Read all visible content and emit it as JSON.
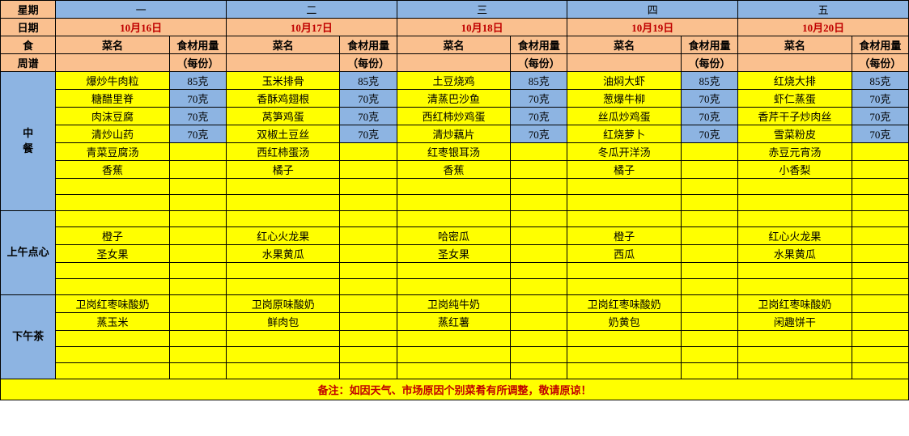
{
  "header": {
    "weekLabel": "星期",
    "days": [
      "一",
      "二",
      "三",
      "四",
      "五"
    ],
    "dateLabel": "日期",
    "dates": [
      "10月16日",
      "10月17日",
      "10月18日",
      "10月19日",
      "10月20日"
    ],
    "foodLabel": "食",
    "recipeLabel": "周谱",
    "dishLabel": "菜名",
    "amountLabel": "食材用量",
    "perServing": "（每份）"
  },
  "sections": {
    "lunch": "中餐",
    "morningSnack": "上午点心",
    "afternoonTea": "下午茶"
  },
  "lunch": [
    {
      "d1": {
        "n": "爆炒牛肉粒",
        "a": "85克"
      },
      "d2": {
        "n": "玉米排骨",
        "a": "85克"
      },
      "d3": {
        "n": "土豆烧鸡",
        "a": "85克"
      },
      "d4": {
        "n": "油焖大虾",
        "a": "85克"
      },
      "d5": {
        "n": "红烧大排",
        "a": "85克"
      }
    },
    {
      "d1": {
        "n": "糖醋里脊",
        "a": "70克"
      },
      "d2": {
        "n": "香酥鸡翅根",
        "a": "70克"
      },
      "d3": {
        "n": "清蒸巴沙鱼",
        "a": "70克"
      },
      "d4": {
        "n": "葱爆牛柳",
        "a": "70克"
      },
      "d5": {
        "n": "虾仁蒸蛋",
        "a": "70克"
      }
    },
    {
      "d1": {
        "n": "肉沫豆腐",
        "a": "70克"
      },
      "d2": {
        "n": "莴笋鸡蛋",
        "a": "70克"
      },
      "d3": {
        "n": "西红柿炒鸡蛋",
        "a": "70克"
      },
      "d4": {
        "n": "丝瓜炒鸡蛋",
        "a": "70克"
      },
      "d5": {
        "n": "香芹干子炒肉丝",
        "a": "70克"
      }
    },
    {
      "d1": {
        "n": "清炒山药",
        "a": "70克"
      },
      "d2": {
        "n": "双椒土豆丝",
        "a": "70克"
      },
      "d3": {
        "n": "清炒藕片",
        "a": "70克"
      },
      "d4": {
        "n": "红烧萝卜",
        "a": "70克"
      },
      "d5": {
        "n": "雪菜粉皮",
        "a": "70克"
      }
    },
    {
      "d1": {
        "n": "青菜豆腐汤",
        "a": ""
      },
      "d2": {
        "n": "西红柿蛋汤",
        "a": ""
      },
      "d3": {
        "n": "红枣银耳汤",
        "a": ""
      },
      "d4": {
        "n": "冬瓜开洋汤",
        "a": ""
      },
      "d5": {
        "n": "赤豆元宵汤",
        "a": ""
      }
    },
    {
      "d1": {
        "n": "香蕉",
        "a": ""
      },
      "d2": {
        "n": "橘子",
        "a": ""
      },
      "d3": {
        "n": "香蕉",
        "a": ""
      },
      "d4": {
        "n": "橘子",
        "a": ""
      },
      "d5": {
        "n": "小香梨",
        "a": ""
      }
    },
    {
      "d1": {
        "n": "",
        "a": ""
      },
      "d2": {
        "n": "",
        "a": ""
      },
      "d3": {
        "n": "",
        "a": ""
      },
      "d4": {
        "n": "",
        "a": ""
      },
      "d5": {
        "n": "",
        "a": ""
      }
    },
    {
      "d1": {
        "n": "",
        "a": ""
      },
      "d2": {
        "n": "",
        "a": ""
      },
      "d3": {
        "n": "",
        "a": ""
      },
      "d4": {
        "n": "",
        "a": ""
      },
      "d5": {
        "n": "",
        "a": ""
      }
    }
  ],
  "morning": [
    {
      "d1": {
        "n": "",
        "a": ""
      },
      "d2": {
        "n": "",
        "a": ""
      },
      "d3": {
        "n": "",
        "a": ""
      },
      "d4": {
        "n": "",
        "a": ""
      },
      "d5": {
        "n": "",
        "a": ""
      }
    },
    {
      "d1": {
        "n": "橙子",
        "a": ""
      },
      "d2": {
        "n": "红心火龙果",
        "a": ""
      },
      "d3": {
        "n": "哈密瓜",
        "a": ""
      },
      "d4": {
        "n": "橙子",
        "a": ""
      },
      "d5": {
        "n": "红心火龙果",
        "a": ""
      }
    },
    {
      "d1": {
        "n": "圣女果",
        "a": ""
      },
      "d2": {
        "n": "水果黄瓜",
        "a": ""
      },
      "d3": {
        "n": "圣女果",
        "a": ""
      },
      "d4": {
        "n": "西瓜",
        "a": ""
      },
      "d5": {
        "n": "水果黄瓜",
        "a": ""
      }
    },
    {
      "d1": {
        "n": "",
        "a": ""
      },
      "d2": {
        "n": "",
        "a": ""
      },
      "d3": {
        "n": "",
        "a": ""
      },
      "d4": {
        "n": "",
        "a": ""
      },
      "d5": {
        "n": "",
        "a": ""
      }
    },
    {
      "d1": {
        "n": "",
        "a": ""
      },
      "d2": {
        "n": "",
        "a": ""
      },
      "d3": {
        "n": "",
        "a": ""
      },
      "d4": {
        "n": "",
        "a": ""
      },
      "d5": {
        "n": "",
        "a": ""
      }
    }
  ],
  "afternoon": [
    {
      "d1": {
        "n": "卫岗红枣味酸奶",
        "a": ""
      },
      "d2": {
        "n": "卫岗原味酸奶",
        "a": ""
      },
      "d3": {
        "n": "卫岗纯牛奶",
        "a": ""
      },
      "d4": {
        "n": "卫岗红枣味酸奶",
        "a": ""
      },
      "d5": {
        "n": "卫岗红枣味酸奶",
        "a": ""
      }
    },
    {
      "d1": {
        "n": "蒸玉米",
        "a": ""
      },
      "d2": {
        "n": "鲜肉包",
        "a": ""
      },
      "d3": {
        "n": "蒸红薯",
        "a": ""
      },
      "d4": {
        "n": "奶黄包",
        "a": ""
      },
      "d5": {
        "n": "闲趣饼干",
        "a": ""
      }
    },
    {
      "d1": {
        "n": "",
        "a": ""
      },
      "d2": {
        "n": "",
        "a": ""
      },
      "d3": {
        "n": "",
        "a": ""
      },
      "d4": {
        "n": "",
        "a": ""
      },
      "d5": {
        "n": "",
        "a": ""
      }
    },
    {
      "d1": {
        "n": "",
        "a": ""
      },
      "d2": {
        "n": "",
        "a": ""
      },
      "d3": {
        "n": "",
        "a": ""
      },
      "d4": {
        "n": "",
        "a": ""
      },
      "d5": {
        "n": "",
        "a": ""
      }
    },
    {
      "d1": {
        "n": "",
        "a": ""
      },
      "d2": {
        "n": "",
        "a": ""
      },
      "d3": {
        "n": "",
        "a": ""
      },
      "d4": {
        "n": "",
        "a": ""
      },
      "d5": {
        "n": "",
        "a": ""
      }
    }
  ],
  "note": "备注：如因天气、市场原因个别菜肴有所调整，敬请原谅！",
  "colors": {
    "orange": "#fac08f",
    "blue": "#8db4e2",
    "yellow": "#ffff00",
    "redText": "#c00000",
    "border": "#000000"
  },
  "layout": {
    "totalWidth": 1123,
    "totalHeight": 539,
    "sideColWidth": 68,
    "dishColWidth": 140,
    "amtColWidth": 70
  }
}
